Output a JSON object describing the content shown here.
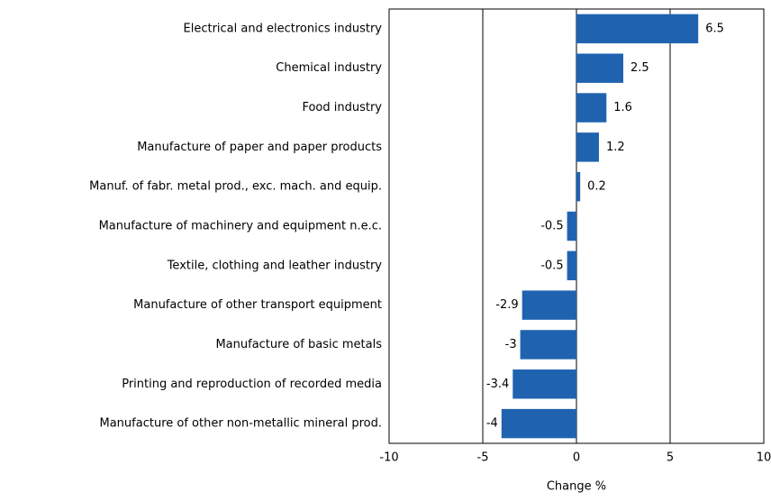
{
  "chart_data": {
    "type": "barh",
    "xlabel": "Change %",
    "categories": [
      "Electrical and electronics industry",
      "Chemical industry",
      "Food industry",
      "Manufacture of paper and paper products",
      "Manuf. of fabr. metal prod., exc. mach. and equip.",
      "Manufacture of machinery and equipment n.e.c.",
      "Textile, clothing and leather industry",
      "Manufacture of other transport equipment",
      "Manufacture of basic metals",
      "Printing and reproduction of recorded media",
      "Manufacture of other non-metallic mineral prod."
    ],
    "values": [
      6.5,
      2.5,
      1.6,
      1.2,
      0.2,
      -0.5,
      -0.5,
      -2.9,
      -3,
      -3.4,
      -4
    ],
    "color": "#1f63b0",
    "xlim": [
      -10,
      10
    ],
    "xticks": [
      -10,
      -5,
      0,
      5,
      10
    ],
    "grid": true
  }
}
